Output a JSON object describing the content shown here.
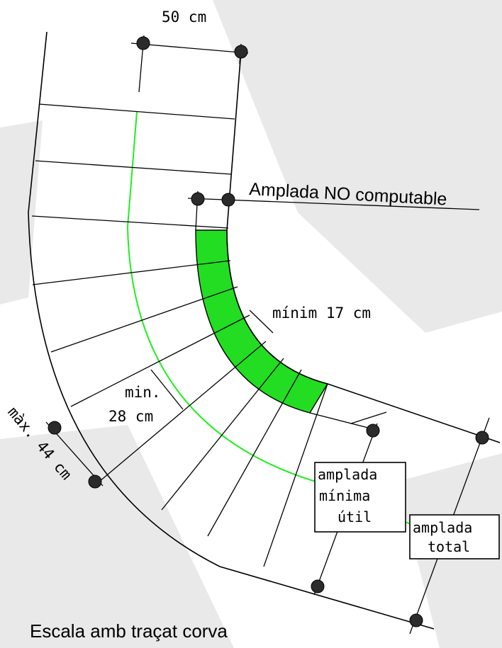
{
  "labels": {
    "width_50": "50 cm",
    "non_computable": "Amplada NO computable",
    "min_17": "mínim 17 cm",
    "min_28_line1": "min.",
    "min_28_line2": "28 cm",
    "max_44": "màx. 44 cm",
    "amplada_minima_line1": "amplada",
    "amplada_minima_line2": "mínima",
    "amplada_minima_line3": "útil",
    "amplada_total_line1": "amplada",
    "amplada_total_line2": "total",
    "caption": "Escala amb traçat corva"
  },
  "colors": {
    "structure": "#000000",
    "walking_line": "#22ee22",
    "non_computable_fill": "#22dd22",
    "background_texture": "#e9e9e9"
  }
}
